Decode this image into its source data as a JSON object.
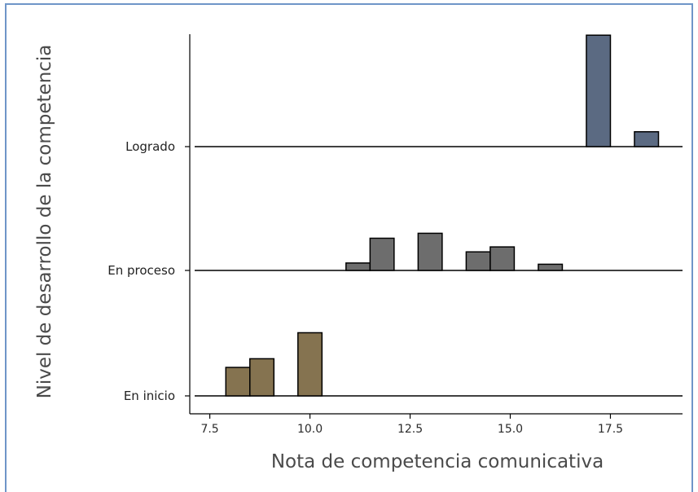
{
  "chart_data": {
    "type": "ridgeline-histogram",
    "title": "",
    "xlabel": "Nota de competencia comunicativa",
    "ylabel": "Nivel de desarrollo de la competencia",
    "xlim": [
      7.0,
      19.3
    ],
    "xticks": [
      "7.5",
      "10.0",
      "12.5",
      "15.0",
      "17.5"
    ],
    "xtick_values": [
      7.5,
      10.0,
      12.5,
      15.0,
      17.5
    ],
    "bin_width": 0.6,
    "categories": [
      "En inicio",
      "En proceso",
      "Logrado"
    ],
    "series": [
      {
        "name": "En inicio",
        "color": "#857350",
        "bins": [
          {
            "x0": 7.9,
            "height": 0.23
          },
          {
            "x0": 8.5,
            "height": 0.3
          },
          {
            "x0": 9.7,
            "height": 0.51
          }
        ]
      },
      {
        "name": "En proceso",
        "color": "#6d6d6d",
        "bins": [
          {
            "x0": 10.9,
            "height": 0.06
          },
          {
            "x0": 11.5,
            "height": 0.26
          },
          {
            "x0": 12.7,
            "height": 0.3
          },
          {
            "x0": 13.9,
            "height": 0.15
          },
          {
            "x0": 14.5,
            "height": 0.19
          },
          {
            "x0": 15.7,
            "height": 0.05
          }
        ]
      },
      {
        "name": "Logrado",
        "color": "#5b6a82",
        "bins": [
          {
            "x0": 16.9,
            "height": 0.9
          },
          {
            "x0": 18.1,
            "height": 0.12
          }
        ]
      }
    ]
  }
}
